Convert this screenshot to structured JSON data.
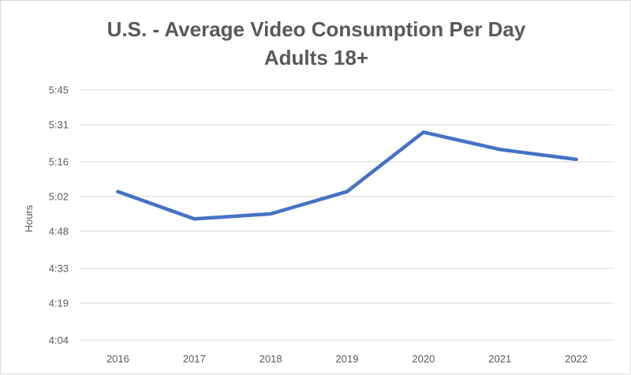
{
  "chart_data": {
    "type": "line",
    "title": "U.S. - Average Video Consumption Per Day",
    "subtitle": "Adults 18+",
    "xlabel": "",
    "ylabel": "Hours",
    "categories": [
      "2016",
      "2017",
      "2018",
      "2019",
      "2020",
      "2021",
      "2022"
    ],
    "values_minutes": [
      304,
      293,
      295,
      304,
      328,
      321,
      317
    ],
    "ylim_minutes": [
      244,
      345
    ],
    "y_ticks": [
      "4:04",
      "4:19",
      "4:33",
      "4:48",
      "5:02",
      "5:16",
      "5:31",
      "5:45"
    ],
    "y_tick_minutes": [
      244,
      259,
      273,
      288,
      302,
      316,
      331,
      345
    ],
    "grid": true,
    "legend": "none",
    "line_color": "#4472c4",
    "grid_color": "#d9d9d9"
  }
}
